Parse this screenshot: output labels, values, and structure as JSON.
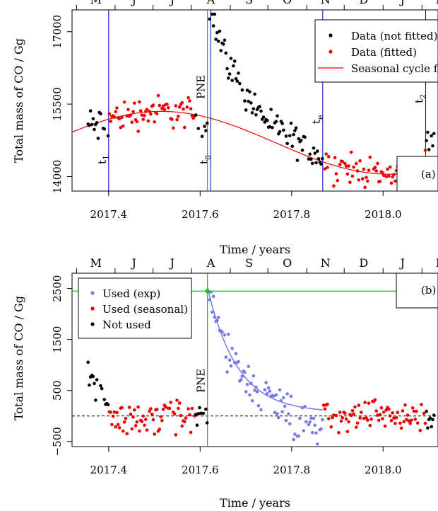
{
  "chart_data": [
    {
      "type": "scatter",
      "panel_label": "(a)",
      "ylabel": "Total mass of  CO  / Gg",
      "xlabel": "Time / years",
      "xlim": [
        2017.32,
        2018.12
      ],
      "ylim": [
        13700,
        17450
      ],
      "x_ticks": [
        "2017.4",
        "2017.6",
        "2017.8",
        "2018.0"
      ],
      "y_ticks": [
        "14000",
        "15500",
        "17000"
      ],
      "month_labels": [
        "M",
        "J",
        "J",
        "A",
        "S",
        "O",
        "N",
        "D",
        "J",
        "F"
      ],
      "vertical_lines": [
        {
          "label": "t",
          "sub": "1",
          "x": 2017.4,
          "color": "#0000cc"
        },
        {
          "label": "t",
          "sub": "0",
          "x": 2017.623,
          "color": "#0000cc"
        },
        {
          "label": "PNE",
          "sub": "",
          "x": 2017.616,
          "color": "#00cc00"
        },
        {
          "label": "t",
          "sub": "e",
          "x": 2017.868,
          "color": "#0000cc"
        },
        {
          "label": "t",
          "sub": "2",
          "x": 2018.093,
          "color": "#0000cc"
        }
      ],
      "legend": [
        "Data (not fitted)",
        "Data (fitted)",
        "Seasonal cycle fit"
      ],
      "colors": {
        "not_fitted": "#000000",
        "fitted": "#ee0000",
        "fit": "#ee0000",
        "t_lines": "#0000cc",
        "pne": "#00cc00"
      },
      "seasonal_fit": {
        "mean": 14700,
        "amplitude": 650,
        "period": 1.0,
        "phase_peak_x": 2017.515,
        "x_start": 2017.32,
        "x_end": 2018.12
      }
    },
    {
      "type": "scatter",
      "panel_label": "(b)",
      "ylabel": "Total mass of  CO  / Gg",
      "xlabel": "Time / years",
      "xlim": [
        2017.32,
        2018.12
      ],
      "ylim": [
        -600,
        2800
      ],
      "x_ticks": [
        "2017.4",
        "2017.6",
        "2017.8",
        "2018.0"
      ],
      "y_ticks": [
        "-500",
        "500",
        "1500",
        "2500"
      ],
      "month_labels": [
        "M",
        "J",
        "J",
        "A",
        "S",
        "O",
        "N",
        "D",
        "J",
        "F"
      ],
      "pne_label": "PNE",
      "pne_x": 2017.616,
      "pne_y": 2450,
      "zero_line": 0,
      "legend": [
        "Used (exp)",
        "Used (seasonal)",
        "Not used"
      ],
      "colors": {
        "exp": "#7b7be6",
        "seasonal": "#ee0000",
        "not_used": "#000000",
        "pne": "#00cc00"
      },
      "exp_fit": {
        "A0": 2450,
        "tau": 0.065,
        "offset": 70,
        "x_start": 2017.616,
        "x_end": 2017.868
      }
    }
  ]
}
